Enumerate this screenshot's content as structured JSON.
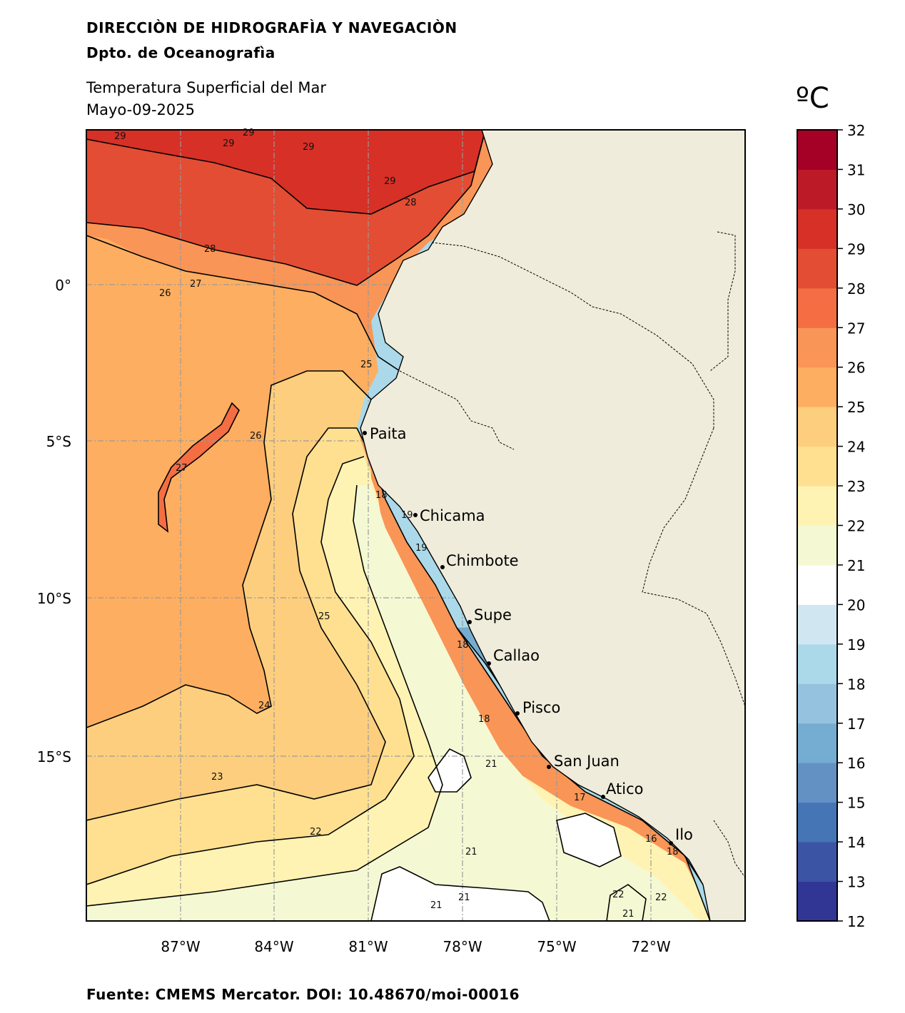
{
  "header": {
    "institution": "DIRECCIÒN DE HIDROGRAFÌA Y NAVEGACIÒN",
    "department": "Dpto. de Oceanografìa",
    "product": "Temperatura Superficial del Mar",
    "date": "Mayo-09-2025"
  },
  "footer": {
    "source": "Fuente: CMEMS Mercator. DOI: 10.48670/moi-00016"
  },
  "colorbar": {
    "unit": "ºC",
    "ticks": [
      "12",
      "13",
      "14",
      "15",
      "16",
      "17",
      "18",
      "19",
      "20",
      "21",
      "22",
      "23",
      "24",
      "25",
      "26",
      "27",
      "28",
      "29",
      "30",
      "31",
      "32"
    ],
    "colors": [
      "#313695",
      "#3b54a4",
      "#4575b4",
      "#6391c4",
      "#74add1",
      "#95c3df",
      "#abd9e9",
      "#d0e7f2",
      "#ffffff",
      "#f4f9d4",
      "#fff3b3",
      "#fee090",
      "#fdce7e",
      "#fdae61",
      "#f99556",
      "#f46d43",
      "#e34d33",
      "#d73027",
      "#bd1a27",
      "#a50026"
    ]
  },
  "map": {
    "lat_labels": [
      "0°",
      "5°S",
      "10°S",
      "15°S"
    ],
    "lon_labels": [
      "87°W",
      "84°W",
      "81°W",
      "78°W",
      "75°W",
      "72°W"
    ],
    "cities": [
      {
        "name": "Paita"
      },
      {
        "name": "Chicama"
      },
      {
        "name": "Chimbote"
      },
      {
        "name": "Supe"
      },
      {
        "name": "Callao"
      },
      {
        "name": "Pisco"
      },
      {
        "name": "San Juan"
      },
      {
        "name": "Atico"
      },
      {
        "name": "Ilo"
      }
    ],
    "contour_labels": [
      "29",
      "29",
      "29",
      "29",
      "29",
      "28",
      "28",
      "27",
      "26",
      "25",
      "26",
      "27",
      "25",
      "24",
      "23",
      "22",
      "21",
      "21",
      "21",
      "21",
      "22",
      "22",
      "21",
      "18",
      "19",
      "18",
      "18",
      "19",
      "17",
      "16",
      "18"
    ],
    "land_color": "#efecdb",
    "grid": true
  }
}
